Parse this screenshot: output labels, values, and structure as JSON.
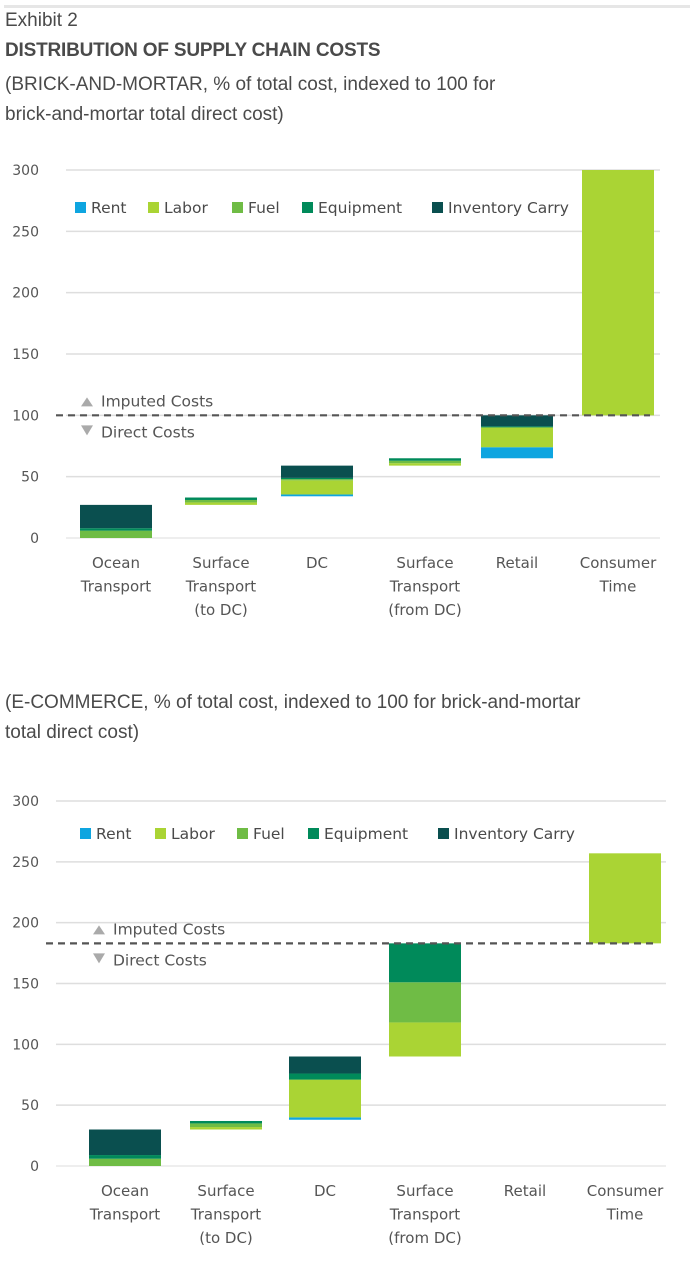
{
  "header": {
    "exhibit": "Exhibit 2",
    "title": "DISTRIBUTION OF SUPPLY CHAIN COSTS"
  },
  "colors": {
    "Rent": "#0ea5e0",
    "Labor": "#aad434",
    "Fuel": "#6fbc45",
    "Equipment": "#008a5a",
    "Inventory Carry": "#0a4f4f",
    "gridline": "#dedede",
    "dashed_line": "#555555",
    "arrow": "#aaaaaa"
  },
  "chart_data": [
    {
      "type": "bar",
      "stacked": true,
      "floating": true,
      "subtitle": "(BRICK-AND-MORTAR, % of total cost, indexed to 100 for brick-and-mortar total direct cost)",
      "subtitle_lines": [
        "(BRICK-AND-MORTAR, % of total cost, indexed to 100 for",
        "brick-and-mortar total direct cost)"
      ],
      "categories": [
        [
          "Ocean",
          "Transport"
        ],
        [
          "Surface",
          "Transport",
          "(to DC)"
        ],
        [
          "DC"
        ],
        [
          "Surface",
          "Transport",
          "(from DC)"
        ],
        [
          "Retail"
        ],
        [
          "Consumer",
          "Time"
        ]
      ],
      "legend": [
        "Rent",
        "Labor",
        "Fuel",
        "Equipment",
        "Inventory Carry"
      ],
      "legend_position": "top",
      "ylim": [
        0,
        300
      ],
      "yticks": [
        0,
        50,
        100,
        150,
        200,
        250,
        300
      ],
      "grid": true,
      "reference_line": {
        "value": 100,
        "above_label": "Imputed Costs",
        "below_label": "Direct Costs"
      },
      "bars": [
        {
          "category": "Ocean Transport",
          "segments": [
            {
              "series": "Fuel",
              "from": 0,
              "to": 6
            },
            {
              "series": "Equipment",
              "from": 6,
              "to": 8
            },
            {
              "series": "Inventory Carry",
              "from": 8,
              "to": 27
            }
          ]
        },
        {
          "category": "Surface Transport (to DC)",
          "segments": [
            {
              "series": "Labor",
              "from": 27,
              "to": 29
            },
            {
              "series": "Fuel",
              "from": 29,
              "to": 31
            },
            {
              "series": "Equipment",
              "from": 31,
              "to": 33
            }
          ]
        },
        {
          "category": "DC",
          "segments": [
            {
              "series": "Rent",
              "from": 34,
              "to": 35.5
            },
            {
              "series": "Labor",
              "from": 35.5,
              "to": 47
            },
            {
              "series": "Fuel",
              "from": 47,
              "to": 48
            },
            {
              "series": "Equipment",
              "from": 48,
              "to": 49
            },
            {
              "series": "Inventory Carry",
              "from": 49,
              "to": 59
            }
          ]
        },
        {
          "category": "Surface Transport (from DC)",
          "segments": [
            {
              "series": "Labor",
              "from": 59,
              "to": 61
            },
            {
              "series": "Fuel",
              "from": 61,
              "to": 63
            },
            {
              "series": "Equipment",
              "from": 63,
              "to": 65
            }
          ]
        },
        {
          "category": "Retail",
          "segments": [
            {
              "series": "Rent",
              "from": 65,
              "to": 74
            },
            {
              "series": "Labor",
              "from": 74,
              "to": 90
            },
            {
              "series": "Fuel",
              "from": 90,
              "to": 90.5
            },
            {
              "series": "Equipment",
              "from": 90.5,
              "to": 91
            },
            {
              "series": "Inventory Carry",
              "from": 91,
              "to": 100
            }
          ]
        },
        {
          "category": "Consumer Time",
          "segments": [
            {
              "series": "Labor",
              "from": 100,
              "to": 300
            }
          ]
        }
      ]
    },
    {
      "type": "bar",
      "stacked": true,
      "floating": true,
      "subtitle": "(E-COMMERCE, % of total cost, indexed to 100 for brick-and-mortar total direct cost)",
      "subtitle_lines": [
        "(E-COMMERCE, % of total cost, indexed to 100 for brick-and-mortar",
        "total direct cost)"
      ],
      "categories": [
        [
          "Ocean",
          "Transport"
        ],
        [
          "Surface",
          "Transport",
          "(to DC)"
        ],
        [
          "DC"
        ],
        [
          "Surface",
          "Transport",
          "(from DC)"
        ],
        [
          "Retail"
        ],
        [
          "Consumer",
          "Time"
        ]
      ],
      "legend": [
        "Rent",
        "Labor",
        "Fuel",
        "Equipment",
        "Inventory Carry"
      ],
      "legend_position": "top",
      "ylim": [
        0,
        300
      ],
      "yticks": [
        0,
        50,
        100,
        150,
        200,
        250,
        300
      ],
      "grid": true,
      "reference_line": {
        "value": 183,
        "above_label": "Imputed Costs",
        "below_label": "Direct Costs"
      },
      "bars": [
        {
          "category": "Ocean Transport",
          "segments": [
            {
              "series": "Fuel",
              "from": 0,
              "to": 6
            },
            {
              "series": "Equipment",
              "from": 6,
              "to": 9
            },
            {
              "series": "Inventory Carry",
              "from": 9,
              "to": 30
            }
          ]
        },
        {
          "category": "Surface Transport (to DC)",
          "segments": [
            {
              "series": "Labor",
              "from": 30,
              "to": 32
            },
            {
              "series": "Fuel",
              "from": 32,
              "to": 35
            },
            {
              "series": "Equipment",
              "from": 35,
              "to": 37
            }
          ]
        },
        {
          "category": "DC",
          "segments": [
            {
              "series": "Rent",
              "from": 38,
              "to": 40
            },
            {
              "series": "Labor",
              "from": 40,
              "to": 71
            },
            {
              "series": "Equipment",
              "from": 71,
              "to": 76
            },
            {
              "series": "Inventory Carry",
              "from": 76,
              "to": 90
            }
          ]
        },
        {
          "category": "Surface Transport (from DC)",
          "segments": [
            {
              "series": "Labor",
              "from": 90,
              "to": 118
            },
            {
              "series": "Fuel",
              "from": 118,
              "to": 151
            },
            {
              "series": "Equipment",
              "from": 151,
              "to": 183
            }
          ]
        },
        {
          "category": "Retail",
          "segments": []
        },
        {
          "category": "Consumer Time",
          "segments": [
            {
              "series": "Labor",
              "from": 183,
              "to": 257
            }
          ]
        }
      ]
    }
  ]
}
